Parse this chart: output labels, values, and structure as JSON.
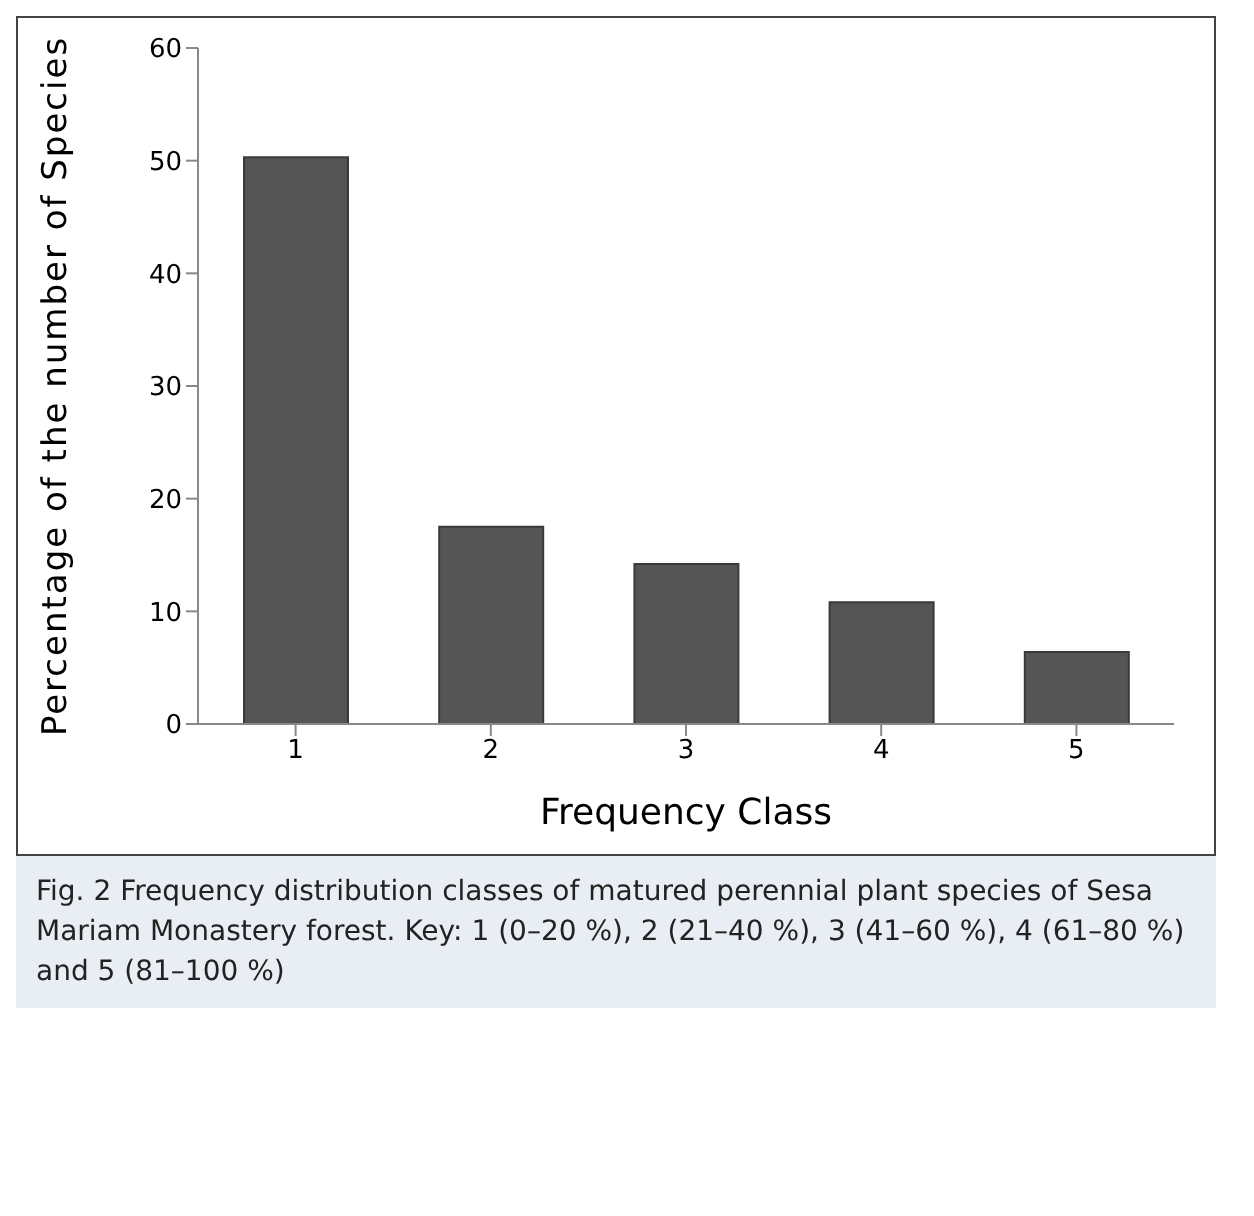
{
  "chart_data": {
    "type": "bar",
    "categories": [
      "1",
      "2",
      "3",
      "4",
      "5"
    ],
    "values": [
      50.3,
      17.5,
      14.2,
      10.8,
      6.4
    ],
    "color": "#555555",
    "xlabel": "Frequency Class",
    "ylabel": "Percentage of the number  of Species",
    "ylim": [
      0,
      60
    ],
    "yticks": [
      0,
      10,
      20,
      30,
      40,
      50,
      60
    ],
    "grid": false,
    "annotations": [
      "Fig. 2  Frequency distribution classes of matured perennial plant species of Sesa Mariam Monastery forest. Key: 1 (0–20 %), 2 (21–40 %), 3 (41–60 %), 4 (61–80 %) and 5 (81–100 %)"
    ]
  }
}
